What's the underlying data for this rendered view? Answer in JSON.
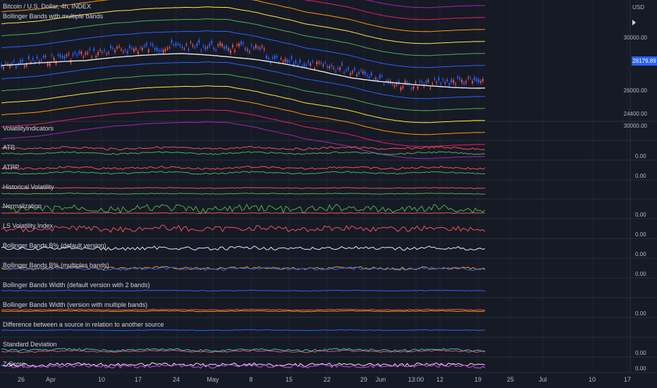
{
  "header": {
    "title": "Bitcoin / U.S. Dollar, 4h, INDEX",
    "subtitle": "Bollinger Bands with multiple bands",
    "currency": "USD"
  },
  "price_axis": {
    "labels": [
      "30000.00",
      "26000.00",
      "24400.00"
    ],
    "current_price": "28179.89",
    "indicator_top": "30000.00"
  },
  "panes": [
    {
      "label": "VolatilityIndicators",
      "value": ""
    },
    {
      "label": "ATR",
      "value": "0.00"
    },
    {
      "label": "ATRP",
      "value": "0.00"
    },
    {
      "label": "Historical Volatility",
      "value": ""
    },
    {
      "label": "Normalization",
      "value": "0.00"
    },
    {
      "label": "LS Volatility Index",
      "value": "0.00"
    },
    {
      "label": "Bollinger Bands B% (default version)",
      "value": "0.00"
    },
    {
      "label": "Bollinger Bands B% (multiples bands)",
      "value": "0.00"
    },
    {
      "label": "Bollinger Bands Width (default version with 2 bands)",
      "value": ""
    },
    {
      "label": "Bollinger Bands Width (version with multiple bands)",
      "value": "0.00"
    },
    {
      "label": "Difference between a source in relation to another source",
      "value": ""
    },
    {
      "label": "Standard Deviation",
      "value": "0.00"
    },
    {
      "label": "Z-Score",
      "value": "0.00"
    }
  ],
  "time_axis": {
    "labels": [
      "26",
      "Apr",
      "10",
      "17",
      "24",
      "May",
      "8",
      "15",
      "22",
      "29",
      "Jun",
      "13:00",
      "12",
      "19",
      "25",
      "Jul",
      "10",
      "17"
    ]
  },
  "colors": {
    "background": "#161a25",
    "grid": "#2a2e39",
    "up": "#2962ff",
    "down": "#ef5350",
    "basis": "#e8e8e8",
    "accent": "#2962ff"
  },
  "icons": [
    "right-arrow-icon"
  ]
}
